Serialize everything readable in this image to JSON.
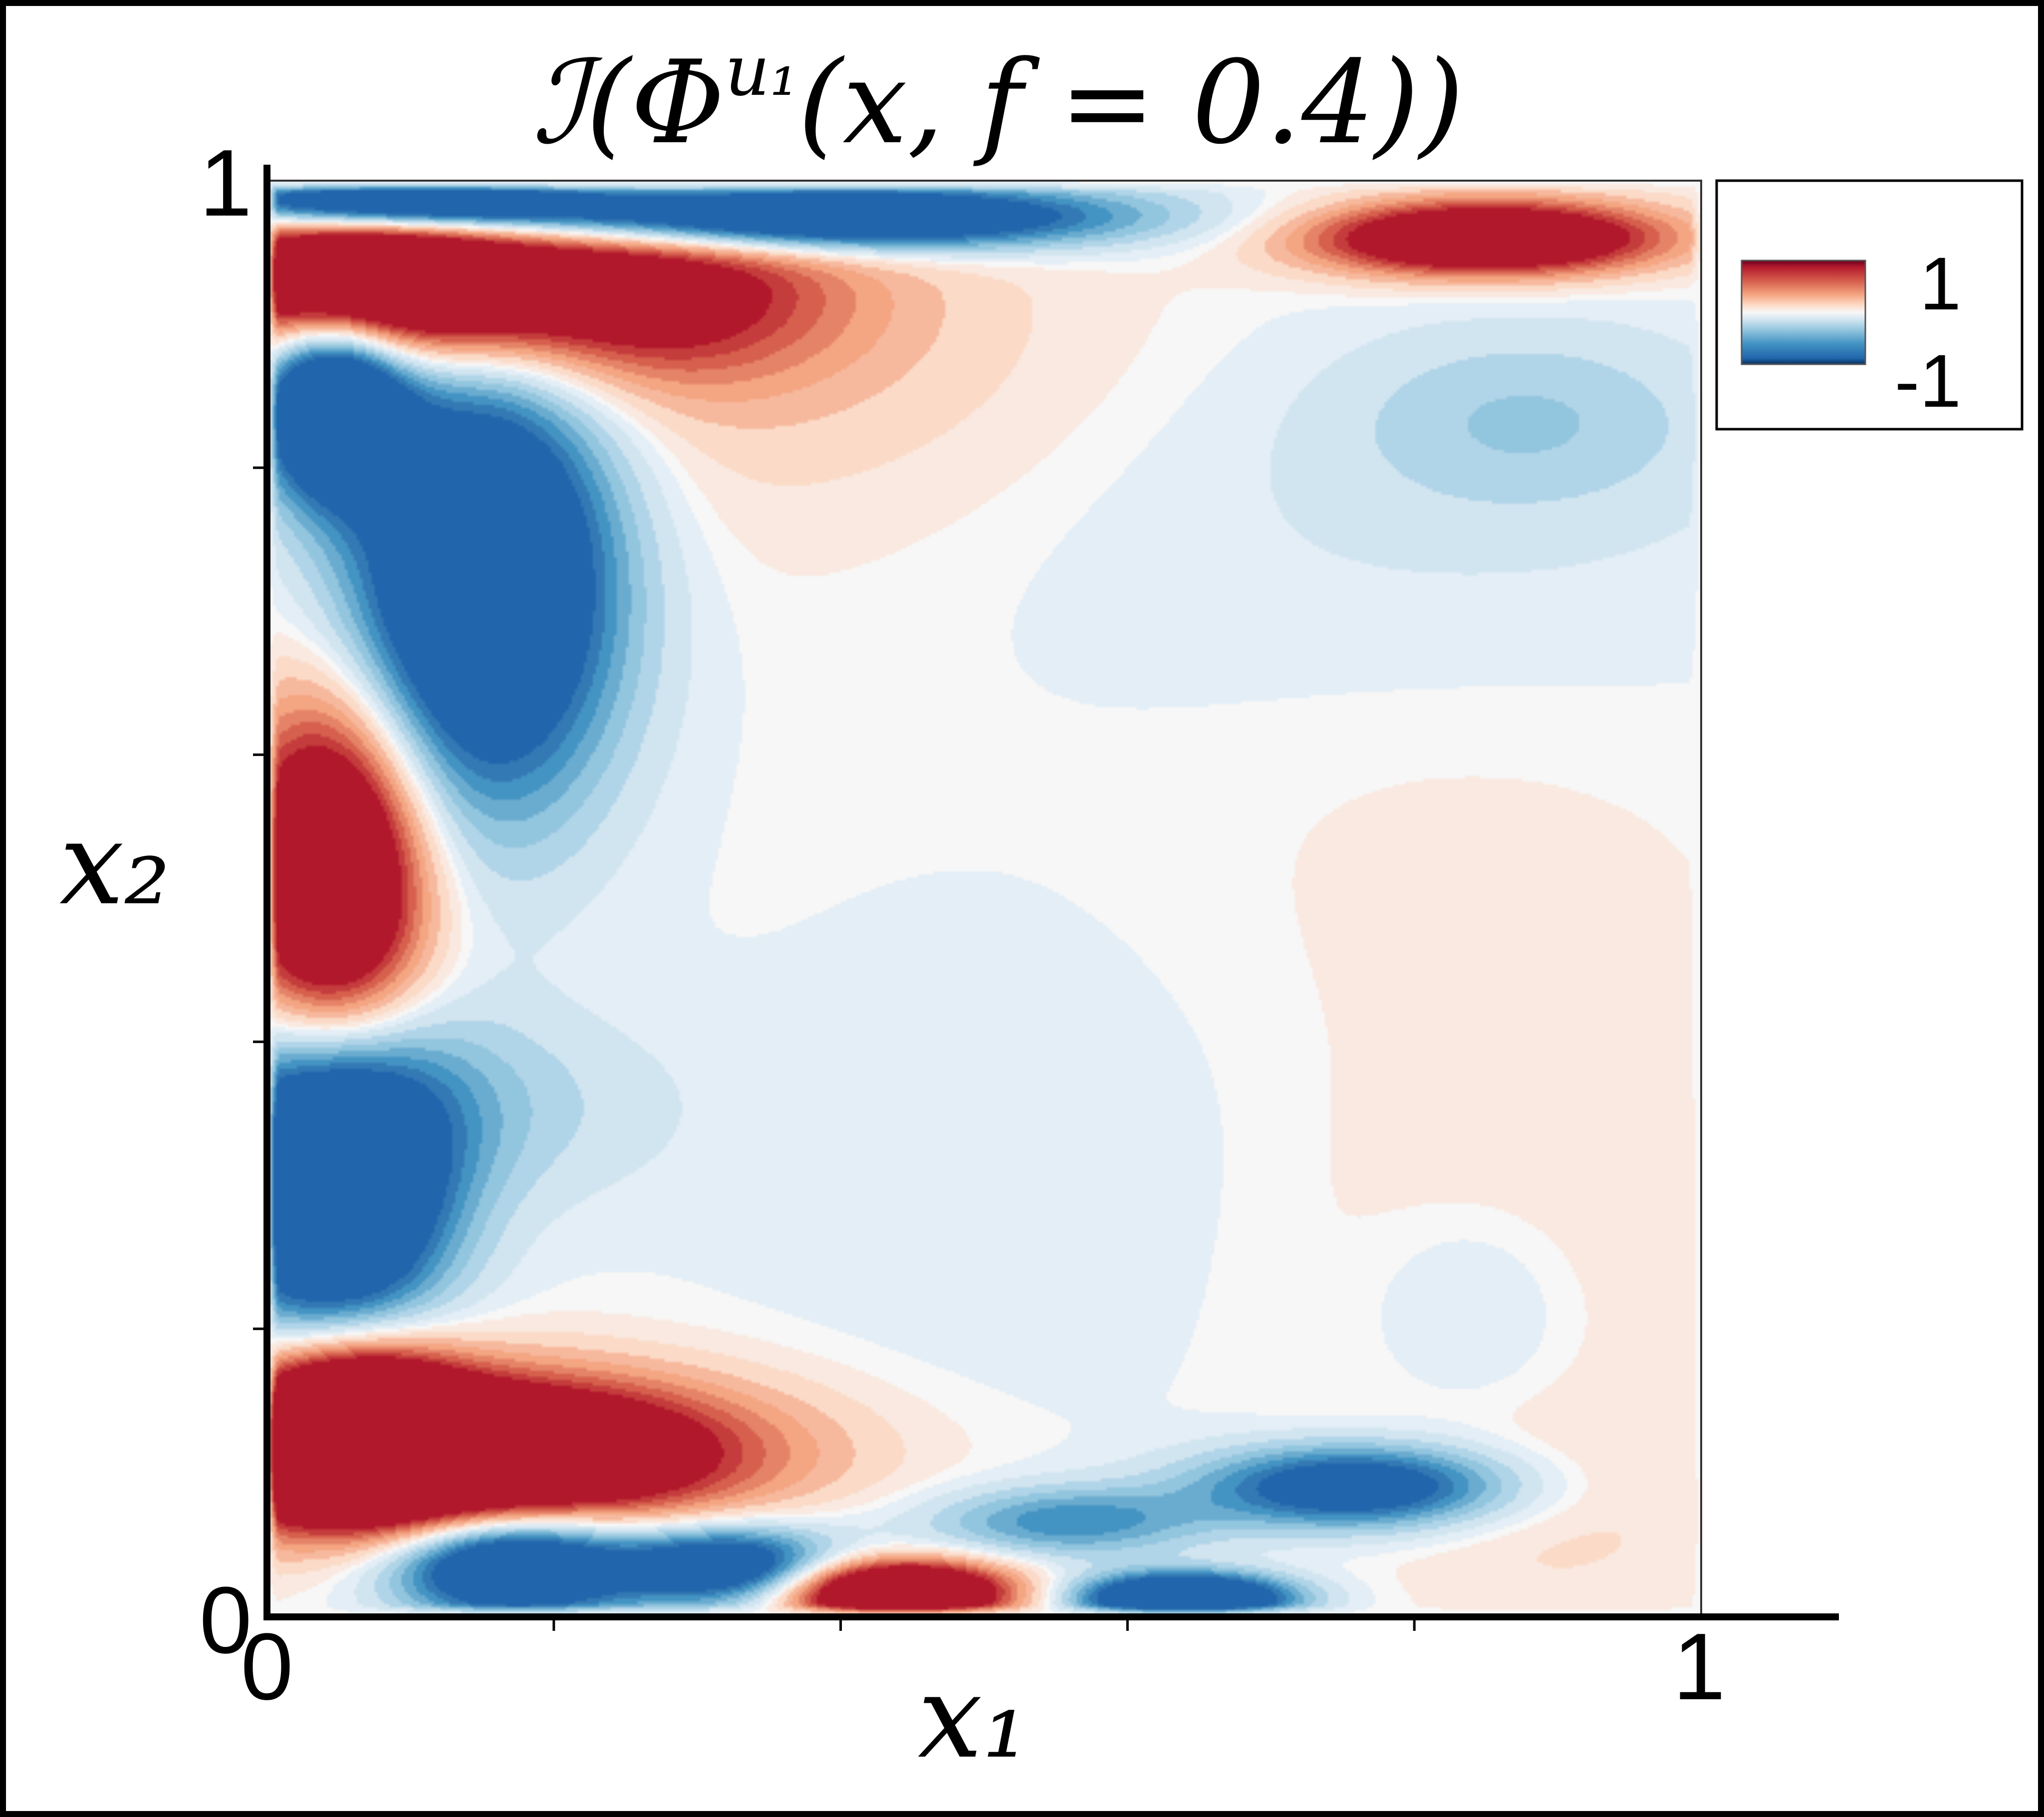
{
  "chart_data": {
    "type": "heatmap",
    "title": "ℐ(Φ",
    "title_sup": "u₁",
    "title_rest": "(x, f = 0.4))",
    "xlabel": "x₁",
    "ylabel": "x₂",
    "xlim": [
      0,
      1
    ],
    "ylim": [
      0,
      1
    ],
    "x_tick_labels": [
      "0",
      "1"
    ],
    "y_tick_labels": [
      "0",
      "1"
    ],
    "x_minor_ticks": [
      0.2,
      0.4,
      0.6,
      0.8
    ],
    "y_minor_ticks": [
      0.2,
      0.4,
      0.6,
      0.8
    ],
    "color_range": [
      -1,
      1
    ],
    "colorbar": {
      "max_label": "1",
      "min_label": "-1",
      "placement": "top-right"
    },
    "colors": {
      "strong_positive": "#b2182b",
      "positive": "#f4a582",
      "weak_positive": "#fbe3d6",
      "neutral": "#f7f7f7",
      "weak_negative": "#e3eef6",
      "negative": "#92c5de",
      "strong_negative": "#2166ac"
    },
    "blobs": [
      {
        "x": 0.045,
        "y": 0.515,
        "sx": 0.045,
        "sy": 0.085,
        "a": 2.0
      },
      {
        "x": 0.045,
        "y": 0.3,
        "sx": 0.055,
        "sy": 0.075,
        "a": -2.0
      },
      {
        "x": 0.1,
        "y": 0.355,
        "sx": 0.11,
        "sy": 0.05,
        "a": -0.4
      },
      {
        "x": 0.06,
        "y": 0.135,
        "sx": 0.05,
        "sy": 0.04,
        "a": 2.0
      },
      {
        "x": 0.15,
        "y": 0.115,
        "sx": 0.12,
        "sy": 0.035,
        "a": 1.6
      },
      {
        "x": 0.11,
        "y": 0.1,
        "sx": 0.17,
        "sy": 0.045,
        "a": 0.7
      },
      {
        "x": 0.17,
        "y": 0.035,
        "sx": 0.055,
        "sy": 0.025,
        "a": -1.6
      },
      {
        "x": 0.32,
        "y": 0.035,
        "sx": 0.05,
        "sy": 0.018,
        "a": -1.2
      },
      {
        "x": 0.25,
        "y": 0.04,
        "sx": 0.14,
        "sy": 0.03,
        "a": -0.4
      },
      {
        "x": 0.44,
        "y": 0.016,
        "sx": 0.055,
        "sy": 0.016,
        "a": 2.2
      },
      {
        "x": 0.56,
        "y": 0.066,
        "sx": 0.065,
        "sy": 0.017,
        "a": -0.7
      },
      {
        "x": 0.64,
        "y": 0.012,
        "sx": 0.05,
        "sy": 0.012,
        "a": -2.0
      },
      {
        "x": 0.76,
        "y": 0.09,
        "sx": 0.075,
        "sy": 0.02,
        "a": -1.3
      },
      {
        "x": 0.84,
        "y": 0.21,
        "sx": 0.05,
        "sy": 0.05,
        "a": -0.22
      },
      {
        "x": 0.84,
        "y": 0.24,
        "sx": 0.13,
        "sy": 0.12,
        "a": 0.12
      },
      {
        "x": 0.9,
        "y": 0.07,
        "sx": 0.08,
        "sy": 0.05,
        "a": 0.14
      },
      {
        "x": 0.82,
        "y": 0.51,
        "sx": 0.14,
        "sy": 0.12,
        "a": 0.07
      },
      {
        "x": 0.55,
        "y": 0.3,
        "sx": 0.18,
        "sy": 0.15,
        "a": -0.1
      },
      {
        "x": 0.15,
        "y": 0.725,
        "sx": 0.065,
        "sy": 0.11,
        "a": -1.9
      },
      {
        "x": 0.045,
        "y": 0.845,
        "sx": 0.035,
        "sy": 0.045,
        "a": -1.9
      },
      {
        "x": 0.07,
        "y": 0.93,
        "sx": 0.09,
        "sy": 0.035,
        "a": 2.0
      },
      {
        "x": 0.25,
        "y": 0.925,
        "sx": 0.1,
        "sy": 0.045,
        "a": 1.1
      },
      {
        "x": 0.34,
        "y": 0.88,
        "sx": 0.18,
        "sy": 0.09,
        "a": 0.25
      },
      {
        "x": 0.09,
        "y": 0.985,
        "sx": 0.1,
        "sy": 0.012,
        "a": -1.8
      },
      {
        "x": 0.37,
        "y": 0.975,
        "sx": 0.15,
        "sy": 0.016,
        "a": -2.0
      },
      {
        "x": 0.85,
        "y": 0.96,
        "sx": 0.085,
        "sy": 0.018,
        "a": 1.8
      },
      {
        "x": 0.88,
        "y": 0.835,
        "sx": 0.09,
        "sy": 0.045,
        "a": -0.3
      },
      {
        "x": 0.8,
        "y": 0.77,
        "sx": 0.22,
        "sy": 0.1,
        "a": -0.14
      }
    ]
  }
}
